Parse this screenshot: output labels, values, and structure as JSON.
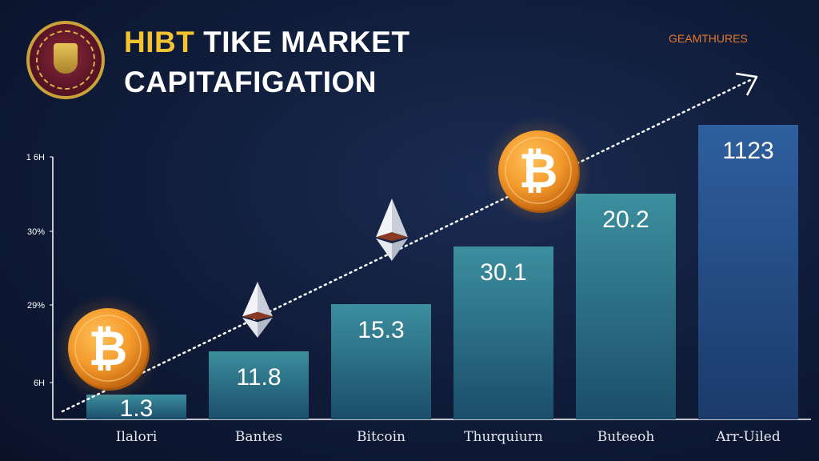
{
  "header": {
    "title_prefix": "HIBT",
    "title_rest": " TIKE MARKET",
    "title_line2": "CAPITAFIGATION",
    "corner_text": "GEAMTHURES"
  },
  "chart_data": {
    "type": "bar",
    "title": "HIBT TIKE MARKET CAPITAFIGATION",
    "categories": [
      "Ilalori",
      "Bantes",
      "Bitcoin",
      "Thurquiurn",
      "Buteeoh",
      "Arr-Uiled"
    ],
    "values": [
      1.3,
      11.8,
      15.3,
      30.1,
      20.2,
      1123
    ],
    "value_labels": [
      "1.3",
      "11.8",
      "15.3",
      "30.1",
      "20.2",
      "1123"
    ],
    "y_tick_labels": [
      "1 6H",
      "30%",
      "29%",
      "6H"
    ],
    "grid": false,
    "trend_line": true
  },
  "colors": {
    "bar_top": "#3b8f9e",
    "bar_bottom": "#1b4d6a",
    "bar_last_top": "#2e5f9e",
    "coin": "#f39a2c",
    "title_accent": "#f3c332",
    "corner_text": "#e27b2c"
  },
  "decor": {
    "logo_icon": "seal-emblem-icon",
    "coin_icon": "bitcoin-coin-icon",
    "eth_icon": "ethereum-icon"
  }
}
